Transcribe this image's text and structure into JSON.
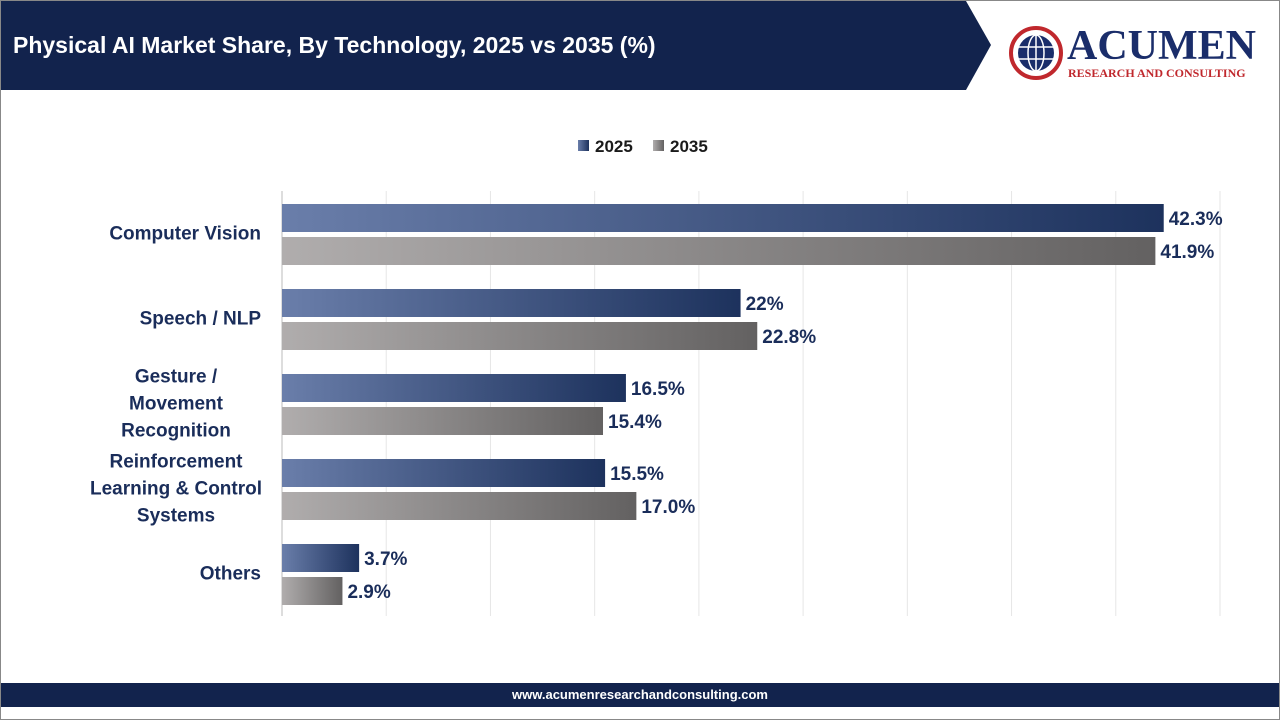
{
  "chart_data": {
    "type": "hbar",
    "title": "Physical AI Market Share, By Technology, 2025 vs 2035 (%)",
    "categories": [
      "Computer Vision",
      "Speech / NLP",
      "Gesture /\nMovement\nRecognition",
      "Reinforcement\nLearning & Control\nSystems",
      "Others"
    ],
    "series": [
      {
        "name": "2025",
        "color": "#2a4785",
        "values": [
          42.3,
          22,
          16.5,
          15.5,
          3.7
        ],
        "value_labels": [
          "42.3%",
          "22%",
          "16.5%",
          "15.5%",
          "3.7%"
        ]
      },
      {
        "name": "2035",
        "color": "#8e8a8a",
        "values": [
          41.9,
          22.8,
          15.4,
          17.0,
          2.9
        ],
        "value_labels": [
          "41.9%",
          "22.8%",
          "15.4%",
          "17.0%",
          "2.9%"
        ]
      }
    ],
    "xlim": [
      0,
      45
    ],
    "xticks": [
      0,
      5,
      10,
      15,
      20,
      25,
      30,
      35,
      40,
      45
    ],
    "grid": true
  },
  "logo": {
    "name": "ACUMEN",
    "tagline": "RESEARCH AND CONSULTING"
  },
  "footer": {
    "url": "www.acumenresearchandconsulting.com"
  }
}
